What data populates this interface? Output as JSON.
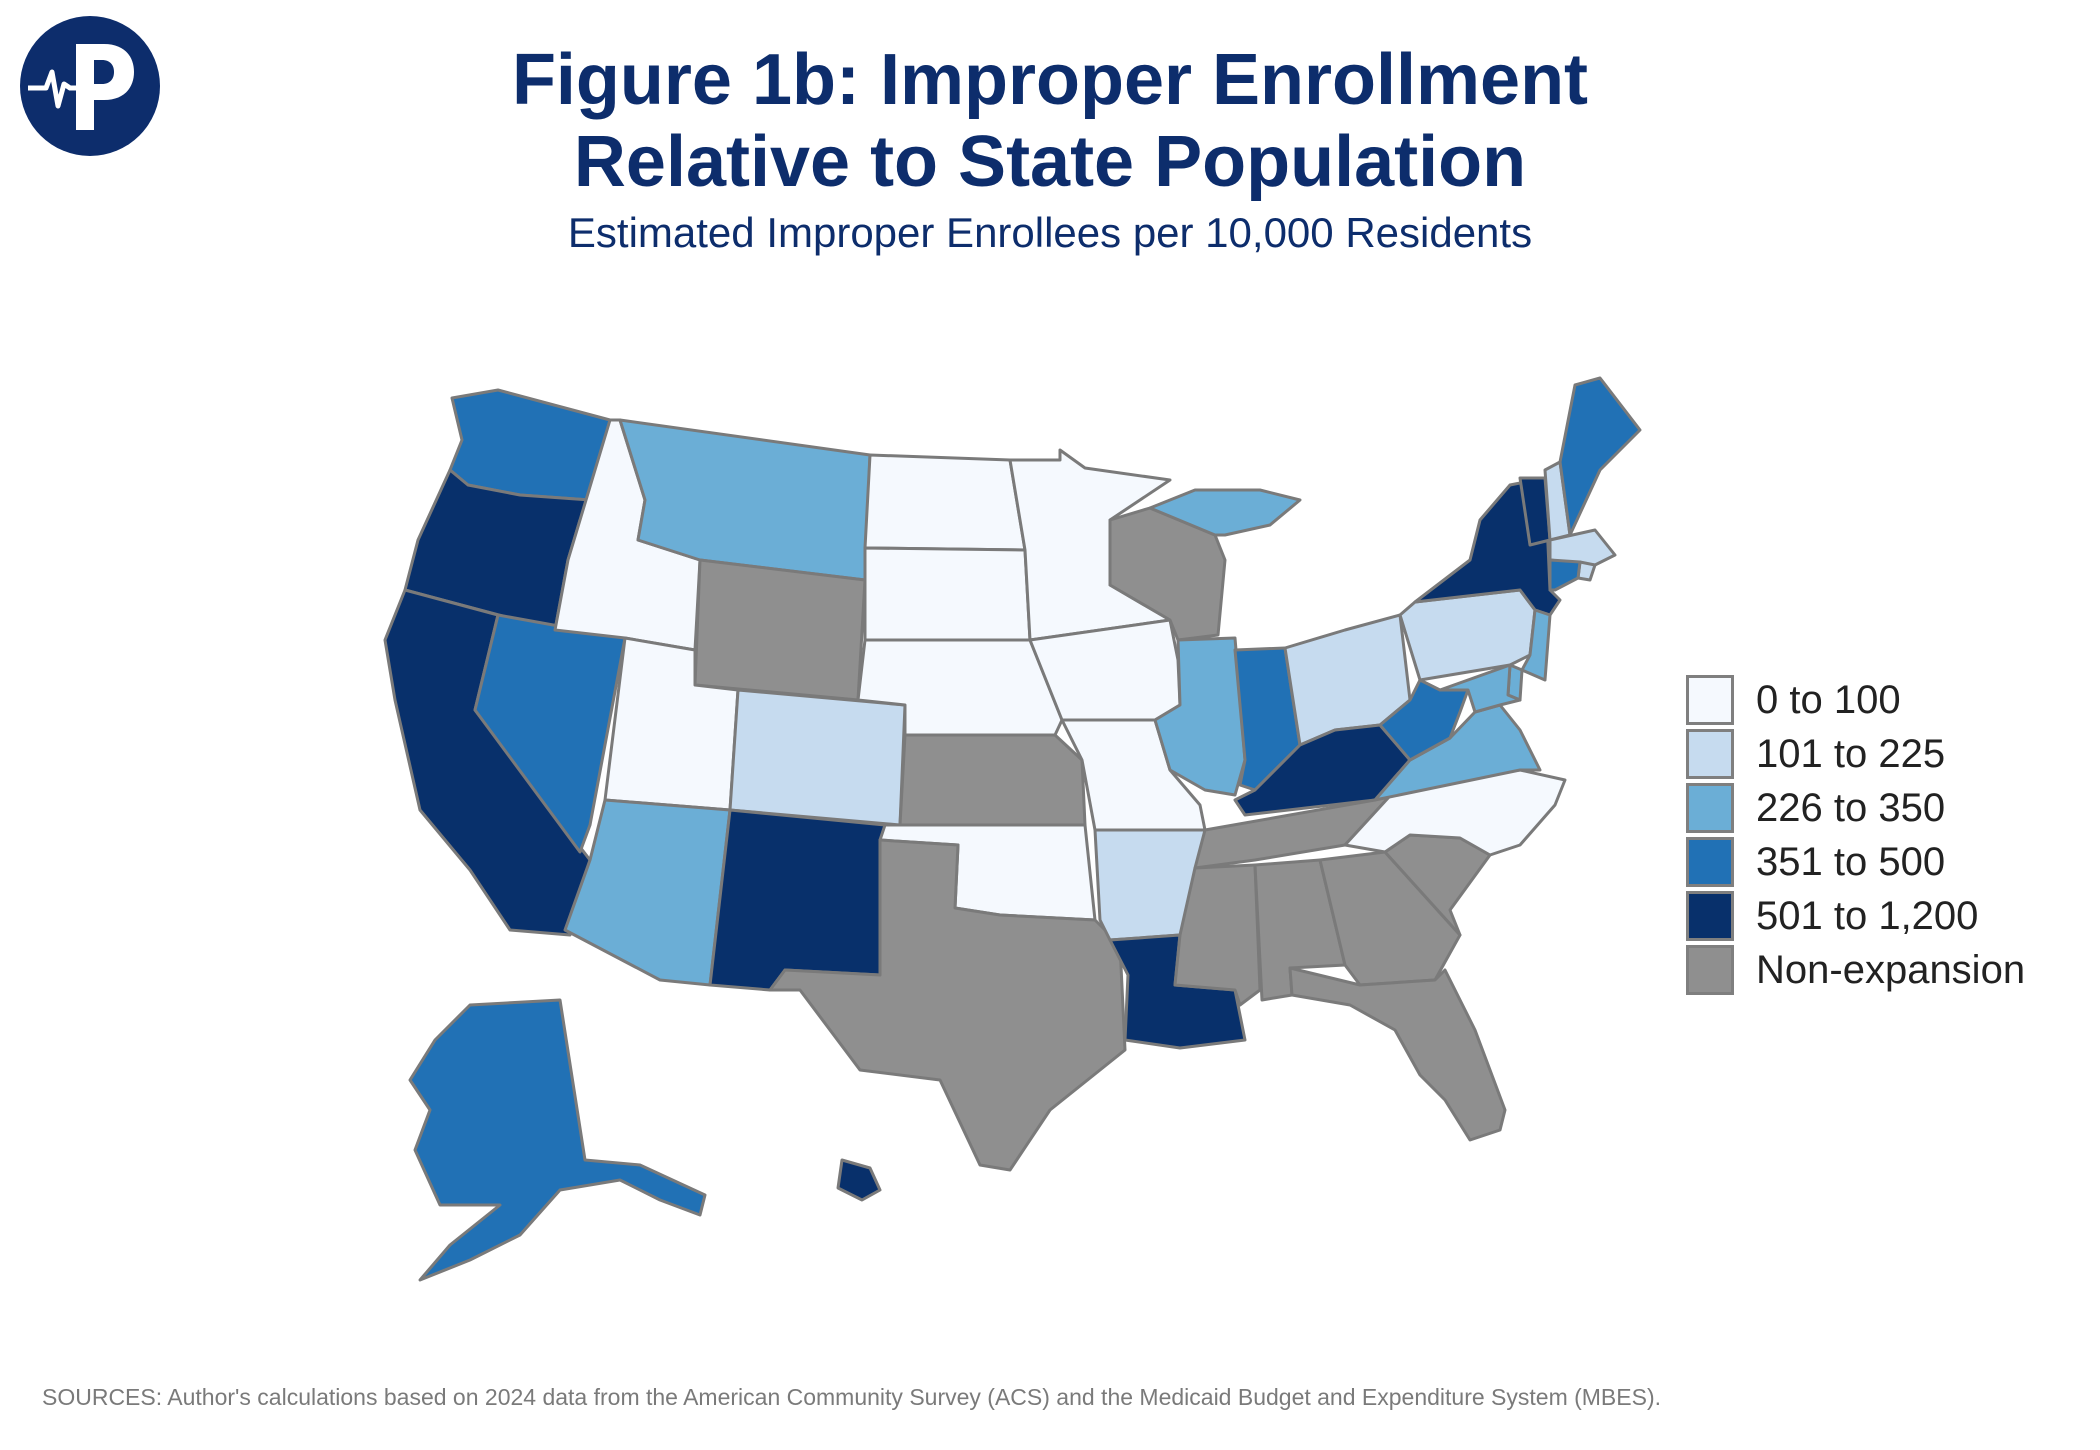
{
  "title_line1": "Figure 1b: Improper Enrollment",
  "title_line2": "Relative to State Population",
  "subtitle": "Estimated Improper Enrollees per 10,000 Residents",
  "logo": {
    "letter": "P",
    "icon": "pulse-p-logo",
    "color": "#0d2d6c"
  },
  "legend": [
    {
      "label": "0 to 100",
      "color": "#f5f9fe"
    },
    {
      "label": "101 to 225",
      "color": "#c6dbef"
    },
    {
      "label": "226 to 350",
      "color": "#6baed6"
    },
    {
      "label": "351 to 500",
      "color": "#2171b5"
    },
    {
      "label": "501 to 1,200",
      "color": "#08306b"
    },
    {
      "label": "Non-expansion",
      "color": "#8f8f8f"
    }
  ],
  "state_bins": {
    "WA": "351 to 500",
    "OR": "501 to 1,200",
    "CA": "501 to 1,200",
    "NV": "351 to 500",
    "ID": "0 to 100",
    "MT": "226 to 350",
    "WY": "Non-expansion",
    "UT": "0 to 100",
    "CO": "101 to 225",
    "AZ": "226 to 350",
    "NM": "501 to 1,200",
    "ND": "0 to 100",
    "SD": "0 to 100",
    "NE": "0 to 100",
    "KS": "Non-expansion",
    "OK": "0 to 100",
    "TX": "Non-expansion",
    "MN": "0 to 100",
    "IA": "0 to 100",
    "MO": "0 to 100",
    "AR": "101 to 225",
    "LA": "501 to 1,200",
    "WI": "Non-expansion",
    "IL": "226 to 350",
    "MI": "226 to 350",
    "IN": "351 to 500",
    "OH": "101 to 225",
    "KY": "501 to 1,200",
    "TN": "Non-expansion",
    "MS": "Non-expansion",
    "AL": "Non-expansion",
    "GA": "Non-expansion",
    "FL": "Non-expansion",
    "SC": "Non-expansion",
    "NC": "0 to 100",
    "VA": "226 to 350",
    "WV": "351 to 500",
    "PA": "101 to 225",
    "NY": "501 to 1,200",
    "VT": "501 to 1,200",
    "NH": "101 to 225",
    "ME": "351 to 500",
    "MA": "101 to 225",
    "RI": "101 to 225",
    "CT": "351 to 500",
    "NJ": "226 to 350",
    "DE": "226 to 350",
    "MD": "226 to 350",
    "AK": "351 to 500",
    "HI": "501 to 1,200"
  },
  "sources": "SOURCES: Author's calculations based on 2024 data from the American Community Survey (ACS) and the Medicaid Budget and Expenditure System (MBES)."
}
